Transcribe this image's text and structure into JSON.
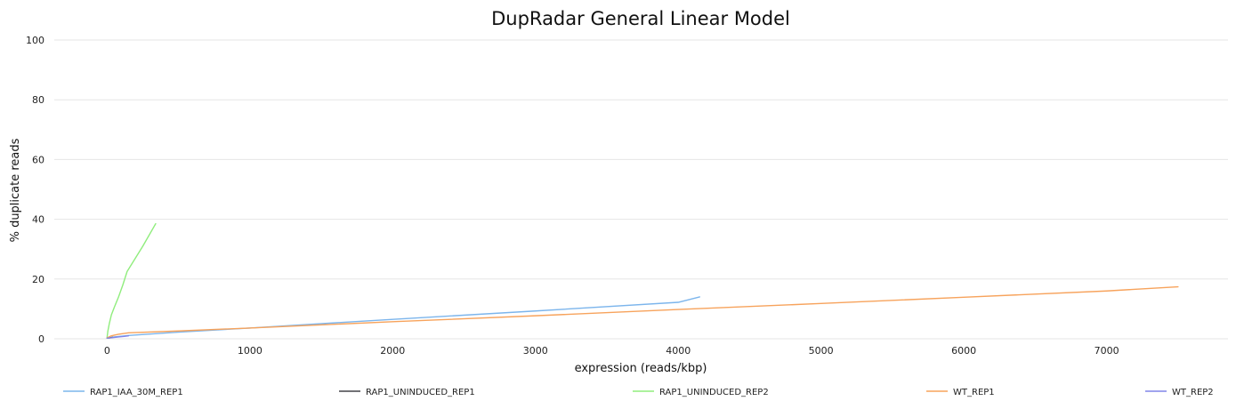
{
  "chart_data": {
    "type": "line",
    "title": "DupRadar General Linear Model",
    "xlabel": "expression (reads/kbp)",
    "ylabel": "% duplicate reads",
    "xlim": [
      -370,
      7850
    ],
    "ylim": [
      0,
      100
    ],
    "x_ticks": [
      0,
      1000,
      2000,
      3000,
      4000,
      5000,
      6000,
      7000
    ],
    "y_ticks": [
      0,
      20,
      40,
      60,
      80,
      100
    ],
    "grid": "horizontal",
    "legend_position": "bottom",
    "series": [
      {
        "name": "RAP1_IAA_30M_REP1",
        "color": "#7cb5ec",
        "points": [
          [
            0,
            0.3
          ],
          [
            50,
            0.6
          ],
          [
            150,
            1.1
          ],
          [
            500,
            2.2
          ],
          [
            1000,
            3.6
          ],
          [
            2000,
            6.5
          ],
          [
            3000,
            9.3
          ],
          [
            4000,
            12.2
          ],
          [
            4150,
            14.0
          ]
        ]
      },
      {
        "name": "RAP1_UNINDUCED_REP1",
        "color": "#434348",
        "points": [
          [
            0,
            0.2
          ],
          [
            20,
            0.3
          ],
          [
            40,
            0.5
          ]
        ]
      },
      {
        "name": "RAP1_UNINDUCED_REP2",
        "color": "#90ed7d",
        "points": [
          [
            0,
            0.5
          ],
          [
            5,
            2.5
          ],
          [
            15,
            5.0
          ],
          [
            30,
            8.0
          ],
          [
            50,
            10.5
          ],
          [
            80,
            14.0
          ],
          [
            110,
            18.0
          ],
          [
            140,
            22.5
          ],
          [
            250,
            31.0
          ],
          [
            340,
            38.5
          ]
        ]
      },
      {
        "name": "WT_REP1",
        "color": "#f7a35c",
        "points": [
          [
            0,
            0.3
          ],
          [
            30,
            1.0
          ],
          [
            80,
            1.5
          ],
          [
            150,
            2.0
          ],
          [
            500,
            2.6
          ],
          [
            1000,
            3.6
          ],
          [
            2000,
            5.7
          ],
          [
            3000,
            7.7
          ],
          [
            4000,
            9.8
          ],
          [
            5000,
            11.8
          ],
          [
            6000,
            13.9
          ],
          [
            7000,
            16.0
          ],
          [
            7500,
            17.4
          ]
        ]
      },
      {
        "name": "WT_REP2",
        "color": "#8085e9",
        "points": [
          [
            0,
            0.2
          ],
          [
            40,
            0.4
          ],
          [
            80,
            0.6
          ],
          [
            120,
            0.8
          ],
          [
            150,
            1.0
          ]
        ]
      }
    ]
  }
}
